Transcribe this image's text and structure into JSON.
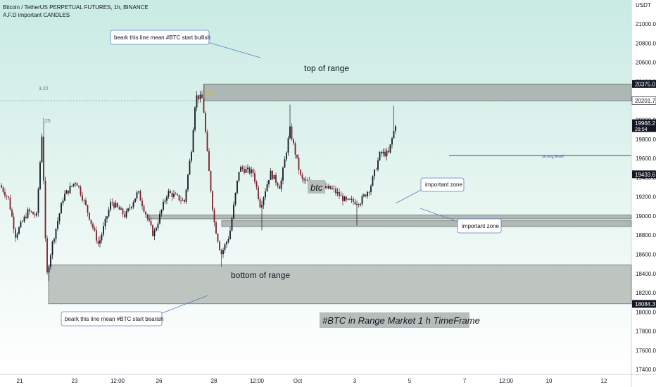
{
  "header": {
    "symbol_line": "Bitcoin / TetherUS PERPETUAL FUTURES, 1h, BINANCE",
    "indicator_line": "A.F.D important CANDLES"
  },
  "currency": "USDT",
  "colors": {
    "bg_top": "#c8ebe3",
    "bg_bottom": "#ffffff",
    "zone_fill": "#a6aeaa",
    "bull": "#131722",
    "bear": "#7b1e2a",
    "marker": "#d4c030",
    "price_tag_bg": "#131722"
  },
  "annotations": {
    "callout_top": "beark this line mean #BTC  start bullish",
    "callout_bottom": "beark this line mean #BTC  start bearish",
    "top_zone_label": "top of range",
    "bottom_zone_label": "bottom of range",
    "btc_label": "btc",
    "important_zone_1": "important zone",
    "important_zone_2": "important zone",
    "strong_level": "strong level",
    "headline": "#BTC in Range Market 1 h TimeFrame",
    "marker_1": "3.22",
    "marker_2": ".25",
    "marker_3": "3.08"
  },
  "chart_data": {
    "type": "candlestick",
    "title": "Bitcoin / TetherUS PERPETUAL FUTURES, 1h, BINANCE",
    "ylim": [
      17350,
      21250
    ],
    "yticks": [
      "21000.0",
      "20800.0",
      "20600.0",
      "20400.0",
      "20200.0",
      "20000.0",
      "19800.0",
      "19600.0",
      "19400.0",
      "19200.0",
      "19000.0",
      "18800.0",
      "18600.0",
      "18400.0",
      "18200.0",
      "18000.0",
      "17800.0",
      "17600.0",
      "17400.0"
    ],
    "price_tags": [
      {
        "label": "20375.0",
        "value": 20375.0,
        "style": "dark"
      },
      {
        "label": "20201.7",
        "value": 20201.7,
        "style": "light"
      },
      {
        "label": "19966.2",
        "value": 19966.2,
        "style": "dark",
        "sub": "28:54"
      },
      {
        "label": "19433.6",
        "value": 19433.6,
        "style": "dark"
      },
      {
        "label": "18084.3",
        "value": 18084.3,
        "style": "dark"
      }
    ],
    "xticks": [
      "21",
      "23",
      "12:00",
      "26",
      "28",
      "12:00",
      "Oct",
      "3",
      "5",
      "7",
      "12:00",
      "10",
      "12"
    ],
    "zones": [
      {
        "name": "top of range",
        "from": 20200,
        "to": 20375
      },
      {
        "name": "important zone upper",
        "from": 18970,
        "to": 19010
      },
      {
        "name": "important zone lower",
        "from": 18890,
        "to": 18950
      },
      {
        "name": "bottom of range",
        "from": 18084.3,
        "to": 18490
      }
    ],
    "strong_level": 19433.6,
    "last_price": 19966.2,
    "key_points": [
      {
        "label": "start",
        "close": 19320
      },
      {
        "label": "spike high (22 Sep)",
        "high": 20020
      },
      {
        "label": "range low (22 Sep)",
        "low": 18320
      },
      {
        "label": "range high (27 Sep)",
        "high": 20375
      },
      {
        "label": "sell-off low (28 Sep)",
        "low": 18470
      },
      {
        "label": "high (1 Oct)",
        "high": 20160
      },
      {
        "label": "last close (4 Oct)",
        "close": 19966.2
      }
    ]
  }
}
